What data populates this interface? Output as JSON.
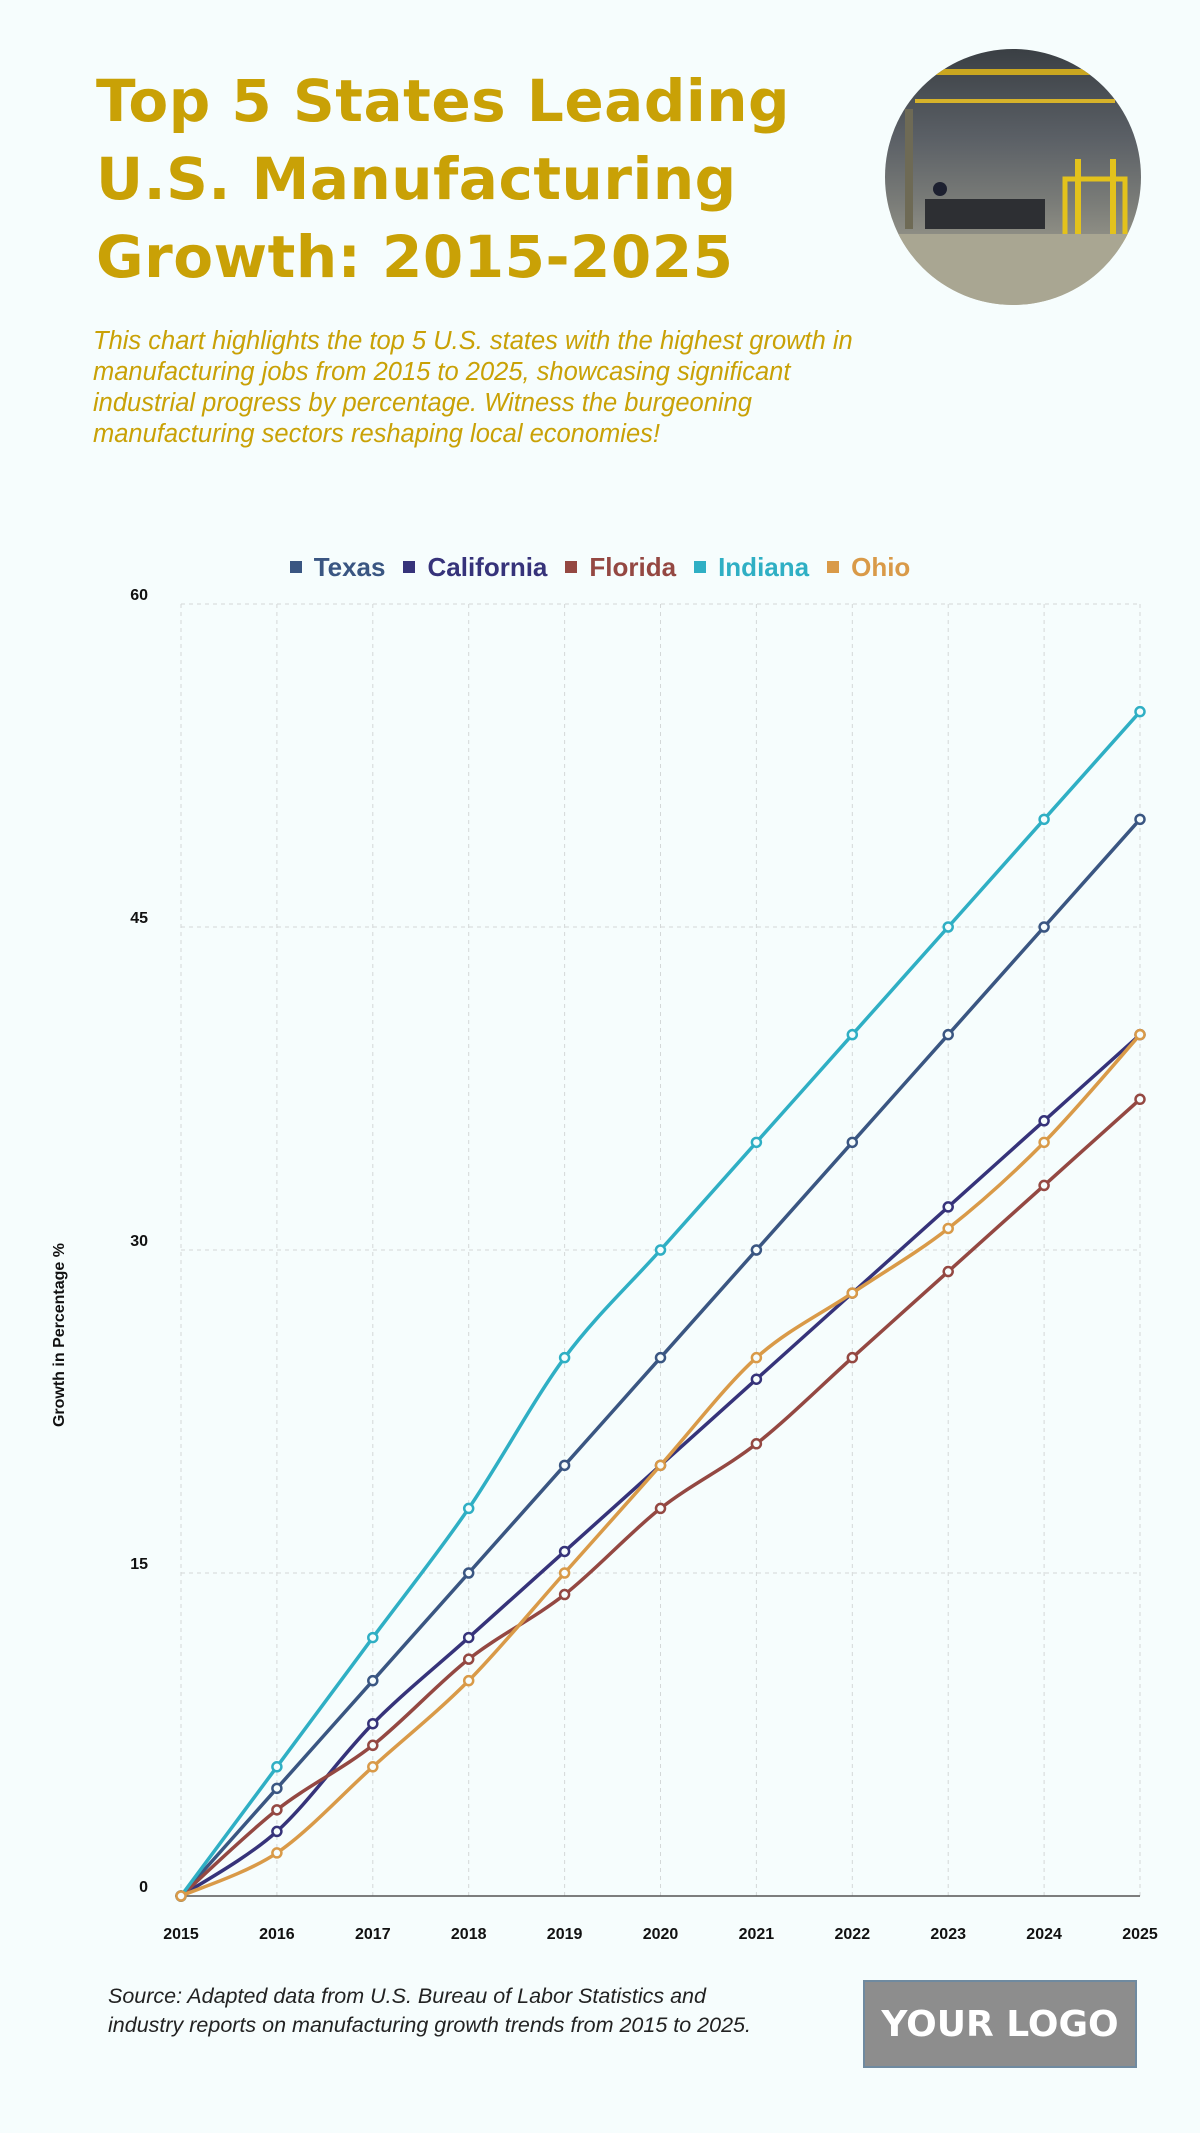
{
  "header": {
    "title": "Top 5 States Leading U.S. Manufacturing Growth: 2015-2025",
    "subtitle": "This chart highlights the top 5 U.S. states with the highest growth in manufacturing jobs from 2015 to 2025, showcasing significant industrial progress by percentage. Witness the burgeoning manufacturing sectors reshaping local economies!",
    "image": "factory-floor-photo"
  },
  "chart_data": {
    "type": "line",
    "title": "",
    "xlabel": "",
    "ylabel": "Growth in Percentage %",
    "x": [
      "2015",
      "2016",
      "2017",
      "2018",
      "2019",
      "2020",
      "2021",
      "2022",
      "2023",
      "2024",
      "2025"
    ],
    "ylim": [
      0,
      60
    ],
    "yticks": [
      0,
      15,
      30,
      45,
      60
    ],
    "grid": true,
    "legend_position": "top-center",
    "series": [
      {
        "name": "Texas",
        "color": "#3a5682",
        "values": [
          0,
          5,
          10,
          15,
          20,
          25,
          30,
          35,
          40,
          45,
          50
        ]
      },
      {
        "name": "California",
        "color": "#36337a",
        "values": [
          0,
          3,
          8,
          12,
          16,
          20,
          24,
          28,
          32,
          36,
          40
        ]
      },
      {
        "name": "Florida",
        "color": "#944842",
        "values": [
          0,
          4,
          7,
          11,
          14,
          18,
          21,
          25,
          29,
          33,
          37
        ]
      },
      {
        "name": "Indiana",
        "color": "#2fafc4",
        "values": [
          0,
          6,
          12,
          18,
          25,
          30,
          35,
          40,
          45,
          50,
          55
        ]
      },
      {
        "name": "Ohio",
        "color": "#d99a48",
        "values": [
          0,
          2,
          6,
          10,
          15,
          20,
          25,
          28,
          31,
          35,
          40
        ]
      }
    ]
  },
  "footer": {
    "source": "Source: Adapted data from U.S. Bureau of Labor Statistics and industry reports on manufacturing growth trends from 2015 to 2025.",
    "logo": "YOUR LOGO"
  }
}
